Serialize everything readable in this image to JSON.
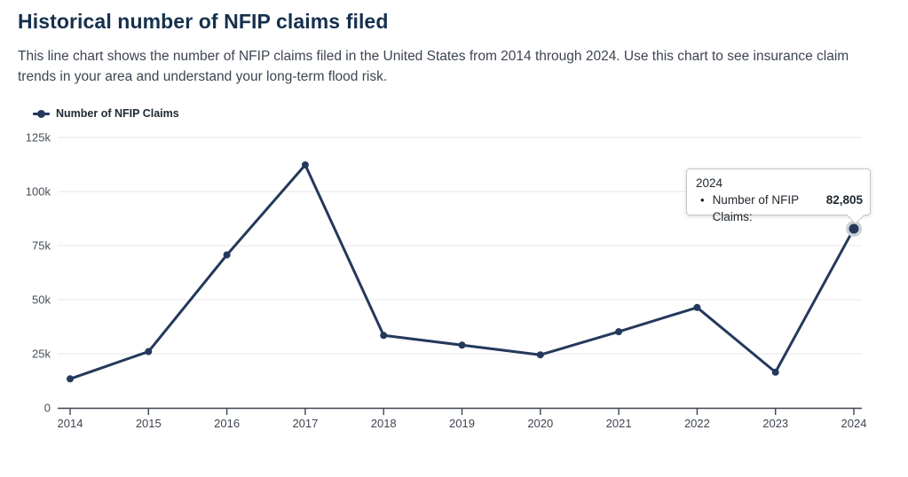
{
  "page": {
    "title": "Historical number of NFIP claims filed",
    "description": "This line chart shows the number of NFIP claims filed in the United States from 2014 through 2024. Use this chart to see insurance claim trends in your area and understand your long-term flood risk."
  },
  "legend": {
    "label": "Number of NFIP Claims"
  },
  "tooltip": {
    "title": "2024",
    "bullet": "•",
    "series_label": "Number of NFIP Claims:",
    "value": "82,805"
  },
  "colors": {
    "title_text": "#16304d",
    "body_text": "#3d4551",
    "line": "#24395b",
    "grid": "#e7e7e7",
    "axis": "#3d4551",
    "y_tick_label": "#474f58",
    "x_tick_label": "#3d4551",
    "highlight_halo": "#ccd1d8"
  },
  "chart_data": {
    "type": "line",
    "title": "Historical number of NFIP claims filed",
    "x": [
      "2014",
      "2015",
      "2016",
      "2017",
      "2018",
      "2019",
      "2020",
      "2021",
      "2022",
      "2023",
      "2024"
    ],
    "series": [
      {
        "name": "Number of NFIP Claims",
        "values": [
          13400,
          26000,
          70700,
          112300,
          33500,
          29000,
          24500,
          35200,
          46400,
          16500,
          82805
        ]
      }
    ],
    "ylim": [
      0,
      125000
    ],
    "yticks": [
      0,
      25000,
      50000,
      75000,
      100000,
      125000
    ],
    "ytick_labels": [
      "0",
      "25k",
      "50k",
      "75k",
      "100k",
      "125k"
    ],
    "xlabel": "",
    "ylabel": "",
    "grid": "horizontal",
    "legend_position": "top-left",
    "highlighted_point": {
      "x": "2024",
      "value": 82805,
      "value_label": "82,805"
    }
  }
}
